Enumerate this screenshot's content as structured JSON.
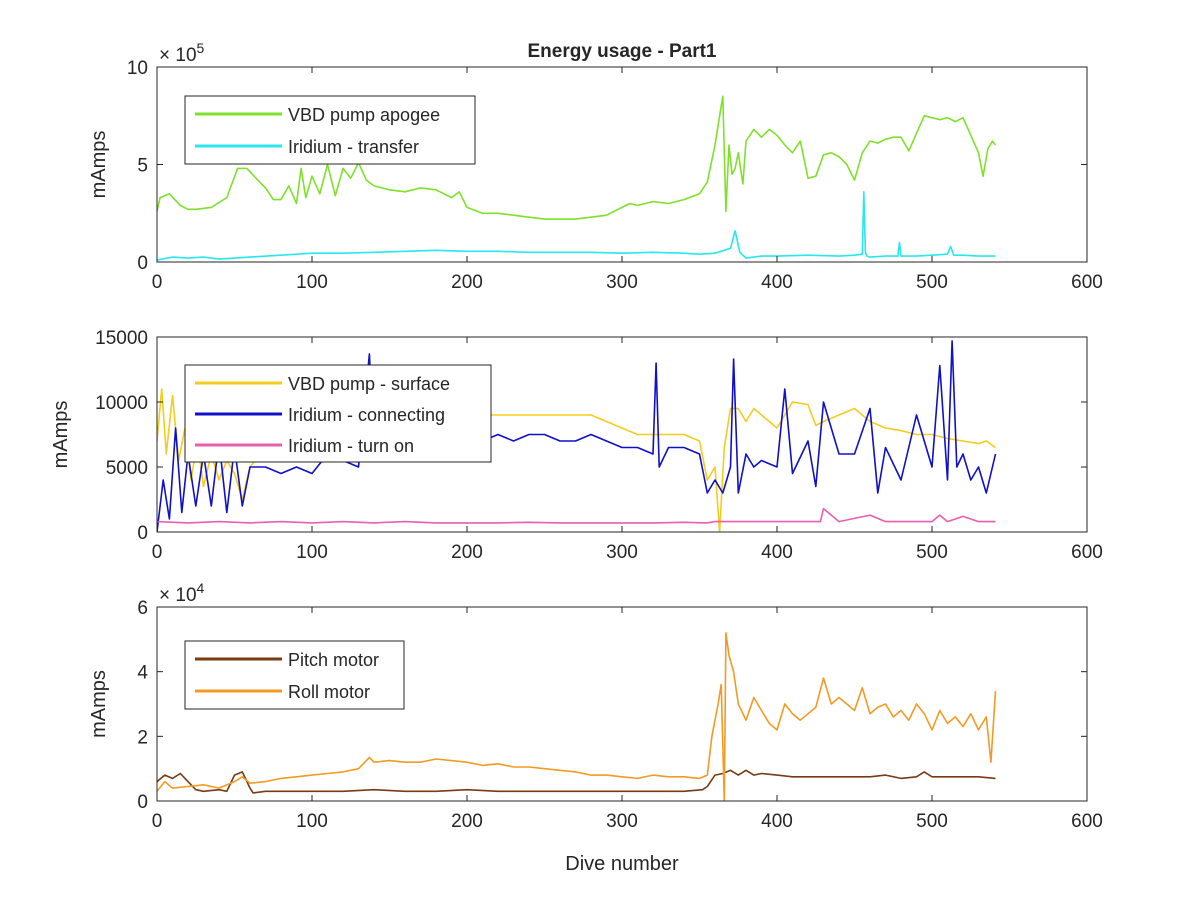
{
  "figure": {
    "title": "Energy usage - Part1"
  },
  "chart_data": [
    {
      "type": "line",
      "title": "Energy usage - Part1",
      "xlabel": "",
      "ylabel": "mAmps",
      "xlim": [
        0,
        600
      ],
      "ylim": [
        0,
        1000000
      ],
      "exponent_label": "× 10",
      "exponent_power": "5",
      "x_ticks": [
        0,
        100,
        200,
        300,
        400,
        500,
        600
      ],
      "y_ticks": [
        0,
        500000,
        1000000
      ],
      "y_tick_labels": [
        "0",
        "5",
        "10"
      ],
      "legend_position": "top-left",
      "grid": false,
      "series": [
        {
          "name": "VBD pump apogee",
          "color": "#7fe02b",
          "x": [
            0,
            2,
            8,
            15,
            20,
            25,
            35,
            45,
            52,
            58,
            65,
            70,
            75,
            80,
            85,
            90,
            93,
            96,
            100,
            105,
            110,
            115,
            120,
            125,
            130,
            135,
            140,
            150,
            160,
            170,
            180,
            190,
            195,
            200,
            210,
            220,
            230,
            240,
            250,
            260,
            270,
            280,
            290,
            300,
            305,
            310,
            320,
            330,
            340,
            350,
            355,
            360,
            362,
            365,
            367,
            369,
            371,
            373,
            375,
            378,
            380,
            385,
            390,
            395,
            400,
            405,
            410,
            415,
            420,
            425,
            430,
            435,
            440,
            445,
            450,
            455,
            460,
            465,
            470,
            475,
            480,
            485,
            490,
            495,
            500,
            505,
            510,
            515,
            520,
            525,
            530,
            533,
            536,
            539,
            541
          ],
          "y": [
            260000,
            330000,
            350000,
            290000,
            270000,
            270000,
            280000,
            330000,
            480000,
            480000,
            420000,
            380000,
            320000,
            320000,
            390000,
            300000,
            480000,
            330000,
            440000,
            350000,
            500000,
            340000,
            480000,
            430000,
            510000,
            420000,
            390000,
            370000,
            360000,
            380000,
            370000,
            330000,
            360000,
            280000,
            250000,
            250000,
            240000,
            230000,
            220000,
            220000,
            220000,
            230000,
            240000,
            280000,
            300000,
            290000,
            310000,
            300000,
            320000,
            350000,
            410000,
            600000,
            700000,
            850000,
            260000,
            600000,
            450000,
            480000,
            560000,
            400000,
            620000,
            680000,
            640000,
            680000,
            650000,
            600000,
            560000,
            620000,
            430000,
            440000,
            550000,
            560000,
            540000,
            500000,
            420000,
            560000,
            620000,
            610000,
            630000,
            640000,
            640000,
            570000,
            660000,
            750000,
            740000,
            730000,
            740000,
            720000,
            740000,
            650000,
            560000,
            440000,
            580000,
            620000,
            600000
          ]
        },
        {
          "name": "Iridium - transfer",
          "color": "#27e7ef",
          "x": [
            0,
            10,
            20,
            30,
            40,
            50,
            60,
            80,
            100,
            120,
            140,
            160,
            180,
            200,
            220,
            240,
            260,
            280,
            300,
            320,
            340,
            350,
            360,
            370,
            373,
            376,
            380,
            390,
            400,
            420,
            440,
            450,
            455,
            456,
            457,
            458,
            460,
            470,
            478,
            479,
            480,
            490,
            500,
            510,
            512,
            514,
            520,
            530,
            541
          ],
          "y": [
            10000,
            25000,
            20000,
            25000,
            15000,
            20000,
            25000,
            35000,
            45000,
            45000,
            50000,
            55000,
            60000,
            55000,
            55000,
            50000,
            50000,
            50000,
            45000,
            50000,
            45000,
            40000,
            45000,
            70000,
            160000,
            50000,
            20000,
            30000,
            30000,
            35000,
            30000,
            35000,
            40000,
            360000,
            50000,
            30000,
            25000,
            30000,
            30000,
            100000,
            30000,
            30000,
            35000,
            40000,
            80000,
            35000,
            35000,
            30000,
            30000
          ]
        }
      ]
    },
    {
      "type": "line",
      "title": "",
      "xlabel": "",
      "ylabel": "mAmps",
      "xlim": [
        0,
        600
      ],
      "ylim": [
        0,
        15000
      ],
      "x_ticks": [
        0,
        100,
        200,
        300,
        400,
        500,
        600
      ],
      "y_ticks": [
        0,
        5000,
        10000,
        15000
      ],
      "y_tick_labels": [
        "0",
        "5000",
        "10000",
        "15000"
      ],
      "legend_position": "top-left",
      "grid": false,
      "series": [
        {
          "name": "VBD pump - surface",
          "color": "#f5cc1d",
          "x": [
            0,
            3,
            6,
            10,
            14,
            18,
            22,
            26,
            30,
            35,
            40,
            45,
            50,
            55,
            60,
            70,
            80,
            90,
            100,
            110,
            120,
            130,
            140,
            150,
            160,
            170,
            180,
            190,
            200,
            210,
            220,
            230,
            240,
            250,
            260,
            270,
            280,
            290,
            300,
            310,
            320,
            330,
            340,
            350,
            355,
            360,
            363,
            366,
            370,
            375,
            380,
            385,
            390,
            400,
            410,
            420,
            425,
            430,
            440,
            450,
            460,
            470,
            480,
            490,
            500,
            510,
            520,
            530,
            535,
            541
          ],
          "y": [
            7000,
            11000,
            6000,
            10500,
            5500,
            8000,
            4000,
            7000,
            3500,
            6000,
            4000,
            5500,
            4500,
            2500,
            5000,
            6500,
            7500,
            7000,
            7500,
            8000,
            7500,
            8000,
            8000,
            8500,
            8500,
            9000,
            9000,
            9000,
            9000,
            9000,
            9000,
            9000,
            9000,
            9000,
            9000,
            9000,
            9000,
            8500,
            8000,
            7500,
            7500,
            7500,
            7500,
            7000,
            4000,
            5000,
            0,
            6500,
            9500,
            9500,
            8500,
            9500,
            9000,
            8000,
            10000,
            9800,
            8200,
            8500,
            9000,
            9500,
            8500,
            8000,
            7800,
            7500,
            7500,
            7200,
            7000,
            6800,
            7000,
            6500
          ]
        },
        {
          "name": "Iridium - connecting",
          "color": "#1010c8",
          "x": [
            0,
            4,
            8,
            12,
            16,
            20,
            25,
            30,
            35,
            40,
            45,
            50,
            55,
            60,
            70,
            80,
            90,
            100,
            110,
            120,
            130,
            137,
            140,
            150,
            160,
            170,
            180,
            190,
            200,
            210,
            220,
            230,
            240,
            250,
            260,
            270,
            280,
            290,
            300,
            310,
            320,
            322,
            324,
            330,
            340,
            350,
            355,
            360,
            365,
            370,
            372,
            375,
            380,
            385,
            390,
            400,
            405,
            410,
            420,
            425,
            430,
            440,
            450,
            460,
            465,
            470,
            480,
            490,
            500,
            505,
            510,
            513,
            516,
            520,
            525,
            530,
            535,
            541
          ],
          "y": [
            0,
            4000,
            1000,
            8000,
            1500,
            6000,
            2000,
            6000,
            2000,
            7000,
            1500,
            6500,
            2000,
            5000,
            5000,
            4500,
            5000,
            4500,
            6000,
            5500,
            5000,
            13700,
            5500,
            6000,
            6500,
            7000,
            7500,
            7000,
            7000,
            7000,
            7500,
            7000,
            7500,
            7500,
            7000,
            7000,
            7500,
            7000,
            6500,
            6500,
            6000,
            13000,
            5000,
            6500,
            6500,
            6000,
            3000,
            4000,
            3000,
            5000,
            13300,
            3000,
            6000,
            5000,
            5500,
            5000,
            11000,
            4500,
            7000,
            3500,
            10000,
            6000,
            6000,
            9500,
            3000,
            6500,
            4000,
            9000,
            5000,
            12800,
            4000,
            14700,
            5000,
            6000,
            4000,
            5000,
            3000,
            6000
          ]
        },
        {
          "name": "Iridium - turn on",
          "color": "#e85fb0",
          "x": [
            0,
            20,
            40,
            60,
            80,
            100,
            120,
            140,
            160,
            180,
            200,
            220,
            240,
            260,
            280,
            300,
            320,
            340,
            355,
            360,
            380,
            400,
            420,
            428,
            430,
            440,
            460,
            470,
            480,
            500,
            505,
            510,
            520,
            530,
            541
          ],
          "y": [
            800,
            700,
            800,
            700,
            800,
            700,
            800,
            700,
            800,
            700,
            700,
            700,
            750,
            700,
            700,
            700,
            700,
            750,
            700,
            800,
            800,
            800,
            800,
            800,
            1800,
            800,
            1300,
            800,
            800,
            800,
            1300,
            800,
            1200,
            800,
            800
          ]
        }
      ]
    },
    {
      "type": "line",
      "title": "",
      "xlabel": "Dive number",
      "ylabel": "mAmps",
      "xlim": [
        0,
        600
      ],
      "ylim": [
        0,
        60000
      ],
      "exponent_label": "× 10",
      "exponent_power": "4",
      "x_ticks": [
        0,
        100,
        200,
        300,
        400,
        500,
        600
      ],
      "y_ticks": [
        0,
        20000,
        40000,
        60000
      ],
      "y_tick_labels": [
        "0",
        "2",
        "4",
        "6"
      ],
      "legend_position": "top-left",
      "grid": false,
      "series": [
        {
          "name": "Pitch motor",
          "color": "#7a3b14",
          "x": [
            0,
            5,
            10,
            15,
            20,
            25,
            30,
            40,
            45,
            50,
            55,
            60,
            62,
            70,
            80,
            100,
            120,
            140,
            160,
            180,
            200,
            220,
            240,
            260,
            280,
            300,
            320,
            340,
            352,
            355,
            360,
            365,
            370,
            375,
            380,
            385,
            390,
            400,
            410,
            420,
            440,
            460,
            470,
            480,
            490,
            495,
            500,
            520,
            530,
            541
          ],
          "y": [
            6000,
            8000,
            7000,
            8500,
            6000,
            3500,
            3000,
            3500,
            3000,
            8000,
            9000,
            4000,
            2500,
            3000,
            3000,
            3000,
            3000,
            3500,
            3000,
            3000,
            3500,
            3000,
            3000,
            3000,
            3000,
            3000,
            3000,
            3000,
            3500,
            4500,
            8000,
            8500,
            9500,
            8000,
            9500,
            8000,
            8500,
            8000,
            7500,
            7500,
            7500,
            7500,
            8000,
            7000,
            7500,
            9000,
            7500,
            7500,
            7500,
            7000
          ]
        },
        {
          "name": "Roll motor",
          "color": "#f39a23",
          "x": [
            0,
            5,
            10,
            20,
            30,
            40,
            50,
            55,
            60,
            70,
            80,
            90,
            100,
            110,
            120,
            130,
            137,
            140,
            150,
            160,
            170,
            180,
            190,
            200,
            210,
            220,
            230,
            240,
            250,
            260,
            270,
            280,
            290,
            300,
            310,
            320,
            330,
            340,
            350,
            355,
            358,
            362,
            364,
            366,
            367,
            369,
            372,
            375,
            380,
            385,
            390,
            395,
            400,
            405,
            410,
            415,
            420,
            425,
            430,
            435,
            440,
            445,
            450,
            455,
            460,
            465,
            470,
            475,
            480,
            485,
            490,
            495,
            500,
            505,
            510,
            515,
            520,
            525,
            530,
            535,
            538,
            541
          ],
          "y": [
            3000,
            6000,
            4000,
            4500,
            5000,
            4000,
            6000,
            7500,
            5500,
            6000,
            7000,
            7500,
            8000,
            8500,
            9000,
            10000,
            13500,
            12000,
            12500,
            12000,
            12000,
            13000,
            12500,
            12000,
            11000,
            11500,
            10500,
            10500,
            10000,
            9500,
            9000,
            8000,
            8000,
            7500,
            7000,
            8000,
            7500,
            7500,
            7000,
            8000,
            20000,
            30000,
            36000,
            0,
            52000,
            45000,
            40000,
            30000,
            25000,
            32000,
            28000,
            24000,
            22000,
            30000,
            27000,
            25000,
            27000,
            29000,
            38000,
            30000,
            32000,
            30000,
            28000,
            35000,
            27000,
            29000,
            30000,
            26000,
            28000,
            25000,
            30000,
            27000,
            22000,
            28000,
            24000,
            26000,
            23000,
            27000,
            22000,
            26000,
            12000,
            34000
          ]
        }
      ]
    }
  ]
}
